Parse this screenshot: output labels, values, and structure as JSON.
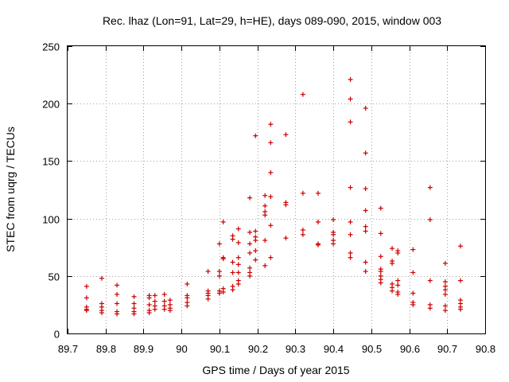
{
  "chart_data": {
    "type": "scatter",
    "title": "Rec. lhaz (Lon=91, Lat=29, h=HE), days 089-090, 2015, window 003",
    "xlabel": "GPS time / Days of year 2015",
    "ylabel": "STEC from uqrg / TECUs",
    "xlim": [
      89.7,
      90.8
    ],
    "ylim": [
      0,
      250
    ],
    "x_ticks": [
      89.7,
      89.8,
      89.9,
      90.0,
      90.1,
      90.2,
      90.3,
      90.4,
      90.5,
      90.6,
      90.7,
      90.8
    ],
    "x_tick_labels": [
      "89.7",
      "89.8",
      "89.9",
      "90",
      "90.1",
      "90.2",
      "90.3",
      "90.4",
      "90.5",
      "90.6",
      "90.7",
      "90.8"
    ],
    "y_ticks": [
      0,
      50,
      100,
      150,
      200,
      250
    ],
    "y_tick_labels": [
      "0",
      "50",
      "100",
      "150",
      "200",
      "250"
    ],
    "grid": true,
    "marker": "+",
    "marker_color": "#cc0000",
    "points": [
      [
        89.75,
        41
      ],
      [
        89.75,
        31
      ],
      [
        89.75,
        23
      ],
      [
        89.75,
        21
      ],
      [
        89.75,
        20
      ],
      [
        89.79,
        48
      ],
      [
        89.79,
        26
      ],
      [
        89.79,
        23
      ],
      [
        89.79,
        20
      ],
      [
        89.79,
        18
      ],
      [
        89.83,
        42
      ],
      [
        89.83,
        34
      ],
      [
        89.83,
        26
      ],
      [
        89.83,
        19
      ],
      [
        89.83,
        17
      ],
      [
        89.875,
        32
      ],
      [
        89.875,
        26
      ],
      [
        89.875,
        22
      ],
      [
        89.875,
        19
      ],
      [
        89.875,
        17
      ],
      [
        89.915,
        33
      ],
      [
        89.915,
        31
      ],
      [
        89.915,
        25
      ],
      [
        89.915,
        20
      ],
      [
        89.915,
        18
      ],
      [
        89.93,
        33
      ],
      [
        89.93,
        28
      ],
      [
        89.93,
        24
      ],
      [
        89.93,
        21
      ],
      [
        89.955,
        34
      ],
      [
        89.955,
        28
      ],
      [
        89.955,
        24
      ],
      [
        89.955,
        21
      ],
      [
        89.97,
        29
      ],
      [
        89.97,
        25
      ],
      [
        89.97,
        22
      ],
      [
        89.97,
        20
      ],
      [
        90.015,
        43
      ],
      [
        90.015,
        33
      ],
      [
        90.015,
        31
      ],
      [
        90.015,
        27
      ],
      [
        90.015,
        24
      ],
      [
        90.07,
        54
      ],
      [
        90.07,
        37
      ],
      [
        90.07,
        35
      ],
      [
        90.07,
        33
      ],
      [
        90.07,
        30
      ],
      [
        90.1,
        78
      ],
      [
        90.1,
        54
      ],
      [
        90.1,
        50
      ],
      [
        90.1,
        37
      ],
      [
        90.1,
        35
      ],
      [
        90.11,
        97
      ],
      [
        90.11,
        66
      ],
      [
        90.11,
        65
      ],
      [
        90.11,
        39
      ],
      [
        90.11,
        36
      ],
      [
        90.135,
        85
      ],
      [
        90.135,
        82
      ],
      [
        90.135,
        62
      ],
      [
        90.135,
        53
      ],
      [
        90.135,
        41
      ],
      [
        90.135,
        38
      ],
      [
        90.15,
        91
      ],
      [
        90.15,
        79
      ],
      [
        90.15,
        66
      ],
      [
        90.15,
        60
      ],
      [
        90.15,
        53
      ],
      [
        90.15,
        46
      ],
      [
        90.15,
        43
      ],
      [
        90.18,
        118
      ],
      [
        90.18,
        88
      ],
      [
        90.18,
        78
      ],
      [
        90.18,
        70
      ],
      [
        90.18,
        57
      ],
      [
        90.18,
        53
      ],
      [
        90.18,
        50
      ],
      [
        90.195,
        172
      ],
      [
        90.195,
        89
      ],
      [
        90.195,
        84
      ],
      [
        90.195,
        81
      ],
      [
        90.195,
        72
      ],
      [
        90.195,
        64
      ],
      [
        90.22,
        120
      ],
      [
        90.22,
        111
      ],
      [
        90.22,
        106
      ],
      [
        90.22,
        103
      ],
      [
        90.22,
        81
      ],
      [
        90.22,
        59
      ],
      [
        90.235,
        182
      ],
      [
        90.235,
        166
      ],
      [
        90.235,
        140
      ],
      [
        90.235,
        119
      ],
      [
        90.235,
        94
      ],
      [
        90.235,
        66
      ],
      [
        90.275,
        173
      ],
      [
        90.275,
        114
      ],
      [
        90.275,
        112
      ],
      [
        90.275,
        83
      ],
      [
        90.32,
        208
      ],
      [
        90.32,
        122
      ],
      [
        90.32,
        90
      ],
      [
        90.32,
        86
      ],
      [
        90.36,
        122
      ],
      [
        90.36,
        97
      ],
      [
        90.36,
        78
      ],
      [
        90.36,
        77
      ],
      [
        90.4,
        99
      ],
      [
        90.4,
        88
      ],
      [
        90.4,
        86
      ],
      [
        90.4,
        81
      ],
      [
        90.4,
        78
      ],
      [
        90.445,
        221
      ],
      [
        90.445,
        204
      ],
      [
        90.445,
        184
      ],
      [
        90.445,
        127
      ],
      [
        90.445,
        97
      ],
      [
        90.445,
        86
      ],
      [
        90.445,
        70
      ],
      [
        90.445,
        66
      ],
      [
        90.485,
        196
      ],
      [
        90.485,
        157
      ],
      [
        90.485,
        126
      ],
      [
        90.485,
        107
      ],
      [
        90.485,
        93
      ],
      [
        90.485,
        89
      ],
      [
        90.485,
        62
      ],
      [
        90.485,
        54
      ],
      [
        90.525,
        109
      ],
      [
        90.525,
        87
      ],
      [
        90.525,
        67
      ],
      [
        90.525,
        56
      ],
      [
        90.525,
        54
      ],
      [
        90.525,
        50
      ],
      [
        90.525,
        47
      ],
      [
        90.525,
        44
      ],
      [
        90.555,
        74
      ],
      [
        90.555,
        63
      ],
      [
        90.555,
        61
      ],
      [
        90.555,
        43
      ],
      [
        90.555,
        40
      ],
      [
        90.555,
        37
      ],
      [
        90.57,
        72
      ],
      [
        90.57,
        70
      ],
      [
        90.57,
        46
      ],
      [
        90.57,
        42
      ],
      [
        90.57,
        36
      ],
      [
        90.57,
        34
      ],
      [
        90.61,
        73
      ],
      [
        90.61,
        53
      ],
      [
        90.61,
        35
      ],
      [
        90.61,
        27
      ],
      [
        90.61,
        25
      ],
      [
        90.655,
        127
      ],
      [
        90.655,
        99
      ],
      [
        90.655,
        46
      ],
      [
        90.655,
        25
      ],
      [
        90.655,
        22
      ],
      [
        90.695,
        61
      ],
      [
        90.695,
        45
      ],
      [
        90.695,
        41
      ],
      [
        90.695,
        38
      ],
      [
        90.695,
        34
      ],
      [
        90.695,
        24
      ],
      [
        90.695,
        20
      ],
      [
        90.735,
        76
      ],
      [
        90.735,
        46
      ],
      [
        90.735,
        29
      ],
      [
        90.735,
        26
      ],
      [
        90.735,
        23
      ],
      [
        90.735,
        21
      ]
    ]
  }
}
